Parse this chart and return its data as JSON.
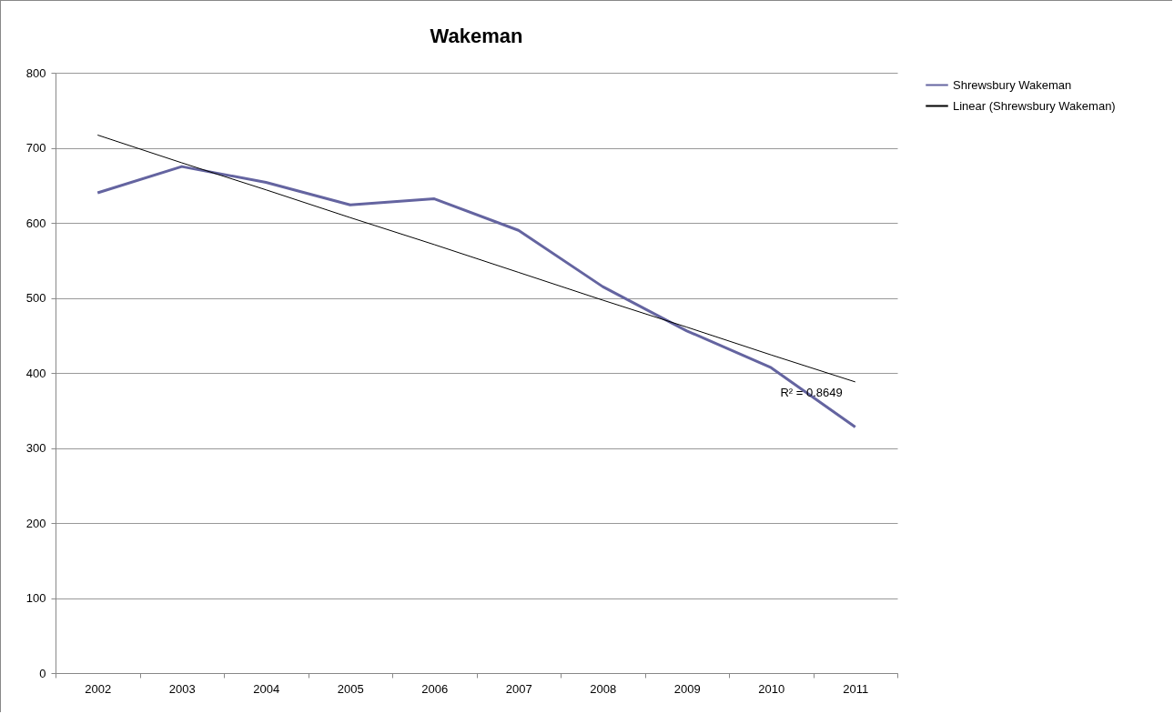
{
  "chart_data": {
    "type": "line",
    "title": "Wakeman",
    "categories": [
      "2002",
      "2003",
      "2004",
      "2005",
      "2006",
      "2007",
      "2008",
      "2009",
      "2010",
      "2011"
    ],
    "series": [
      {
        "name": "Shrewsbury Wakeman",
        "color": "#6464a0",
        "values": [
          640,
          675,
          654,
          624,
          632,
          590,
          515,
          456,
          407,
          328
        ]
      },
      {
        "name": "Linear (Shrewsbury Wakeman)",
        "type": "line",
        "color": "#000000",
        "values": [
          717,
          680,
          644,
          607,
          571,
          534,
          497,
          461,
          424,
          388
        ]
      }
    ],
    "annotations": [
      {
        "text": "R² = 0.8649",
        "x": "2011",
        "y": 388
      }
    ],
    "ylim": [
      0,
      800
    ],
    "yticks": [
      0,
      100,
      200,
      300,
      400,
      500,
      600,
      700,
      800
    ],
    "grid": "y",
    "legend": "right"
  }
}
